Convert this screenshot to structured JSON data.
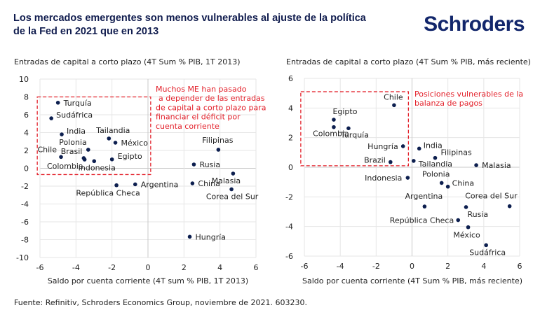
{
  "header": {
    "title": "Los mercados emergentes son menos vulnerables al ajuste de la política de la Fed en 2021 que en 2013",
    "logo": "Schroders"
  },
  "footer": {
    "source": "Fuente: Refinitiv, Schroders Economics Group, noviembre de 2021. 603230."
  },
  "colors": {
    "points": "#0d1f4f",
    "annotation": "#e3202a",
    "grid": "#e3e3e3"
  },
  "chart_data": [
    {
      "type": "scatter",
      "ylabel": "Entradas de capital a corto plazo (4T Sum % PIB, 1T 2013)",
      "xlabel": "Saldo por cuenta corriente (4T sum % PIB, 1T 2013)",
      "xlim": [
        -6,
        6
      ],
      "ylim": [
        -10,
        10
      ],
      "xticks": [
        -6,
        -4,
        -2,
        0,
        2,
        4,
        6
      ],
      "yticks": [
        10,
        8,
        6,
        4,
        2,
        0,
        -2,
        -4,
        -6,
        -8,
        -10
      ],
      "grid": true,
      "annotation": "Muchos ME han pasado a depender de las entradas de capital a corto plazo para financiar el déficit por cuenta corriente",
      "highlight_box": {
        "x": [
          -6.15,
          0.15
        ],
        "y": [
          -0.7,
          8.0
        ]
      },
      "points": [
        {
          "label": "Turquía",
          "x": -5.0,
          "y": 7.35
        },
        {
          "label": "Sudáfrica",
          "x": -5.37,
          "y": 5.6
        },
        {
          "label": "India",
          "x": -4.79,
          "y": 3.8
        },
        {
          "label": "Tailandia",
          "x": -2.17,
          "y": 3.34
        },
        {
          "label": "México",
          "x": -1.81,
          "y": 2.87
        },
        {
          "label": "Polonia",
          "x": -3.32,
          "y": 2.08
        },
        {
          "label": "Chile",
          "x": -4.83,
          "y": 1.27
        },
        {
          "label": "Brasil",
          "x": -3.57,
          "y": 1.14
        },
        {
          "label": "Colombia",
          "x": -3.52,
          "y": 0.98
        },
        {
          "label": "Indonesia",
          "x": -2.99,
          "y": 0.8
        },
        {
          "label": "Egipto",
          "x": -2.0,
          "y": 1.0
        },
        {
          "label": "República Checa",
          "x": -1.75,
          "y": -1.9
        },
        {
          "label": "Argentina",
          "x": -0.71,
          "y": -1.8
        },
        {
          "label": "Filipinas",
          "x": 3.91,
          "y": 2.08
        },
        {
          "label": "Rusia",
          "x": 2.55,
          "y": 0.43
        },
        {
          "label": "Malasia",
          "x": 4.73,
          "y": -0.59
        },
        {
          "label": "China",
          "x": 2.47,
          "y": -1.69
        },
        {
          "label": "Corea del Sur",
          "x": 4.64,
          "y": -2.35
        },
        {
          "label": "Hungría",
          "x": 2.32,
          "y": -7.67
        }
      ]
    },
    {
      "type": "scatter",
      "ylabel": "Entradas de capital a corto plazo (4T Sum % PIB, más reciente)",
      "xlabel": "Saldo por cuenta corriente (4T Sum % PIB, más reciente)",
      "xlim": [
        -6,
        6
      ],
      "ylim": [
        -6,
        6
      ],
      "xticks": [
        -6,
        -4,
        -2,
        0,
        2,
        4,
        6
      ],
      "yticks": [
        6,
        4,
        2,
        0,
        -2,
        -4,
        -6
      ],
      "grid": true,
      "annotation": "Posiciones vulnerables de la balanza de pagos",
      "highlight_box": {
        "x": [
          -6.2,
          -0.2
        ],
        "y": [
          0.1,
          5.1
        ]
      },
      "points": [
        {
          "label": "Chile",
          "x": -1.0,
          "y": 4.19
        },
        {
          "label": "Egipto",
          "x": -4.36,
          "y": 3.21
        },
        {
          "label": "Colombia",
          "x": -4.36,
          "y": 2.71
        },
        {
          "label": "Turquía",
          "x": -3.54,
          "y": 2.63
        },
        {
          "label": "Hungría",
          "x": -0.5,
          "y": 1.42
        },
        {
          "label": "India",
          "x": 0.4,
          "y": 1.26
        },
        {
          "label": "Brazil",
          "x": -1.2,
          "y": 0.35
        },
        {
          "label": "Tailandia",
          "x": 0.09,
          "y": 0.43
        },
        {
          "label": "Filipinas",
          "x": 1.29,
          "y": 0.63
        },
        {
          "label": "Malasia",
          "x": 3.58,
          "y": 0.14
        },
        {
          "label": "Indonesia",
          "x": -0.24,
          "y": -0.71
        },
        {
          "label": "Polonia",
          "x": 1.65,
          "y": -1.06
        },
        {
          "label": "China",
          "x": 2.0,
          "y": -1.31
        },
        {
          "label": "Argentina",
          "x": 0.7,
          "y": -2.65
        },
        {
          "label": "Corea del Sur",
          "x": 5.44,
          "y": -2.63
        },
        {
          "label": "Rusia",
          "x": 3.01,
          "y": -2.69
        },
        {
          "label": "República Checa",
          "x": 2.57,
          "y": -3.57
        },
        {
          "label": "México",
          "x": 3.13,
          "y": -4.05
        },
        {
          "label": "Sudáfrica",
          "x": 4.13,
          "y": -5.26
        }
      ]
    }
  ]
}
